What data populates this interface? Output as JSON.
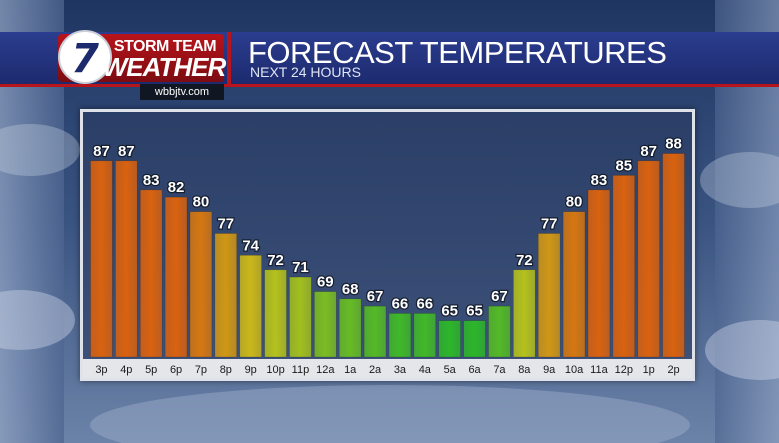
{
  "branding": {
    "logo_number": "7",
    "logo_line1": "STORM TEAM",
    "logo_line2": "WEATHER",
    "website": "wbbjtv.com"
  },
  "header": {
    "title": "FORECAST TEMPERATURES",
    "subtitle": "NEXT 24 HOURS"
  },
  "colors": {
    "hot": "#d9620f",
    "mild": "#c9c21a",
    "cool": "#19b52c",
    "header_blue": "#23338a",
    "accent_red": "#b8141b"
  },
  "chart_data": {
    "type": "bar",
    "categories": [
      "3p",
      "4p",
      "5p",
      "6p",
      "7p",
      "8p",
      "9p",
      "10p",
      "11p",
      "12a",
      "1a",
      "2a",
      "3a",
      "4a",
      "5a",
      "6a",
      "7a",
      "8a",
      "9a",
      "10a",
      "11a",
      "12p",
      "1p",
      "2p"
    ],
    "values": [
      87,
      87,
      83,
      82,
      80,
      77,
      74,
      72,
      71,
      69,
      68,
      67,
      66,
      66,
      65,
      65,
      67,
      72,
      77,
      80,
      83,
      85,
      87,
      88
    ],
    "ylim": [
      60,
      90
    ],
    "grid": false
  }
}
